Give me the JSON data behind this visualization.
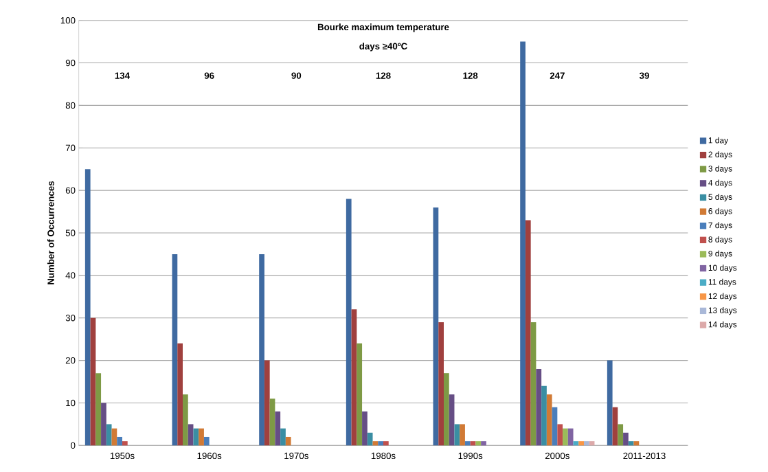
{
  "chart_data": {
    "type": "bar",
    "title": "Bourke maximum temperature",
    "subtitle": "days ≥40ºC",
    "ylabel": "Number of Occurrences",
    "categories": [
      "1950s",
      "1960s",
      "1970s",
      "1980s",
      "1990s",
      "2000s",
      "2011-2013"
    ],
    "ylim": [
      0,
      100
    ],
    "yticks": [
      0,
      10,
      20,
      30,
      40,
      50,
      60,
      70,
      80,
      90,
      100
    ],
    "grid": "y",
    "legend": "right",
    "series": [
      {
        "name": "1 day",
        "color": "#3f6aa1",
        "values": [
          65,
          45,
          45,
          58,
          56,
          95,
          20
        ]
      },
      {
        "name": "2 days",
        "color": "#a0403e",
        "values": [
          30,
          24,
          20,
          32,
          29,
          53,
          9
        ]
      },
      {
        "name": "3 days",
        "color": "#7e9a45",
        "values": [
          17,
          12,
          11,
          24,
          17,
          29,
          5
        ]
      },
      {
        "name": "4 days",
        "color": "#664e85",
        "values": [
          10,
          5,
          8,
          8,
          12,
          18,
          3
        ]
      },
      {
        "name": "5 days",
        "color": "#3a8ea3",
        "values": [
          5,
          4,
          4,
          3,
          5,
          14,
          1
        ]
      },
      {
        "name": "6 days",
        "color": "#d17a35",
        "values": [
          4,
          4,
          2,
          1,
          5,
          12,
          1
        ]
      },
      {
        "name": "7 days",
        "color": "#4a7ebb",
        "values": [
          2,
          2,
          0,
          1,
          1,
          9,
          0
        ]
      },
      {
        "name": "8 days",
        "color": "#c0504d",
        "values": [
          1,
          0,
          0,
          1,
          1,
          5,
          0
        ]
      },
      {
        "name": "9 days",
        "color": "#9bbb59",
        "values": [
          0,
          0,
          0,
          0,
          1,
          4,
          0
        ]
      },
      {
        "name": "10 days",
        "color": "#8064a2",
        "values": [
          0,
          0,
          0,
          0,
          1,
          4,
          0
        ]
      },
      {
        "name": "11 days",
        "color": "#4bacc6",
        "values": [
          0,
          0,
          0,
          0,
          0,
          1,
          0
        ]
      },
      {
        "name": "12 days",
        "color": "#f79646",
        "values": [
          0,
          0,
          0,
          0,
          0,
          1,
          0
        ]
      },
      {
        "name": "13 days",
        "color": "#a9b8d8",
        "values": [
          0,
          0,
          0,
          0,
          0,
          1,
          0
        ]
      },
      {
        "name": "14 days",
        "color": "#dca9a9",
        "values": [
          0,
          0,
          0,
          0,
          0,
          1,
          0
        ]
      }
    ],
    "annotations": [
      "134",
      "96",
      "90",
      "128",
      "128",
      "247",
      "39"
    ]
  }
}
